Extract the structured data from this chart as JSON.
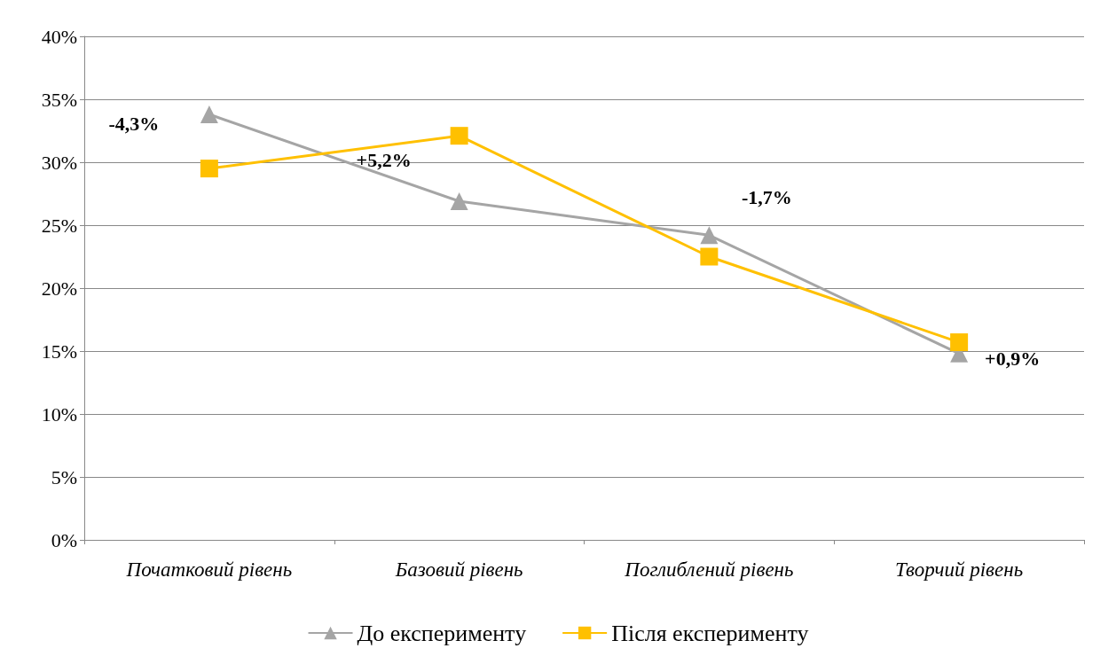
{
  "chart_data": {
    "type": "line",
    "categories": [
      "Початковий рівень",
      "Базовий рівень",
      "Поглиблений рівень",
      "Творчий рівень"
    ],
    "series": [
      {
        "name": "До експерименту",
        "color": "#a5a5a5",
        "marker": "triangle",
        "values": [
          33.8,
          26.9,
          24.2,
          14.8
        ]
      },
      {
        "name": "Після експерименту",
        "color": "#ffc000",
        "marker": "square",
        "values": [
          29.5,
          32.1,
          22.5,
          15.7
        ]
      }
    ],
    "ylim": [
      0,
      40
    ],
    "yticks": [
      {
        "value": 0,
        "label": "0%"
      },
      {
        "value": 5,
        "label": "5%"
      },
      {
        "value": 10,
        "label": "10%"
      },
      {
        "value": 15,
        "label": "15%"
      },
      {
        "value": 20,
        "label": "20%"
      },
      {
        "value": 25,
        "label": "25%"
      },
      {
        "value": 30,
        "label": "30%"
      },
      {
        "value": 35,
        "label": "35%"
      },
      {
        "value": 40,
        "label": "40%"
      }
    ],
    "grid": "y",
    "legend": "bottom",
    "line_style": "solid",
    "annotations": [
      "-4,3%",
      "+5,2%",
      "-1,7%",
      "+0,9%"
    ]
  }
}
